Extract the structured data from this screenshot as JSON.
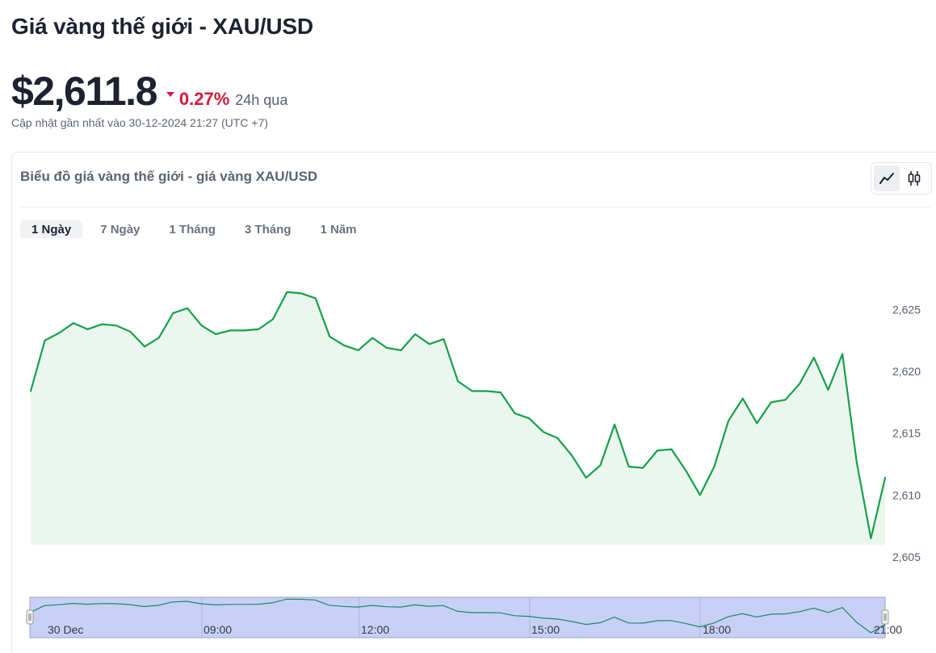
{
  "page": {
    "title": "Giá vàng thế giới - XAU/USD",
    "price": "$2,611.8",
    "change": "0.27%",
    "change_direction": "down",
    "period": "24h qua",
    "updated": "Cập nhật gần nhất vào 30-12-2024 21:27 (UTC +7)"
  },
  "card": {
    "header": "Biểu đồ giá vàng thế giới - giá vàng XAU/USD",
    "toggle": {
      "active": "line",
      "icons": [
        "line-chart-icon",
        "candlestick-icon"
      ]
    },
    "tabs": [
      {
        "label": "1 Ngày",
        "active": true
      },
      {
        "label": "7 Ngày",
        "active": false
      },
      {
        "label": "1 Tháng",
        "active": false
      },
      {
        "label": "3 Tháng",
        "active": false
      },
      {
        "label": "1 Năm",
        "active": false
      }
    ]
  },
  "colors": {
    "line": "#16a04a",
    "area": "#ebf6ee",
    "down": "#d6183a",
    "navigator_fill": "#c8d0f5",
    "navigator_line": "#1c8a6a"
  },
  "chart_data": {
    "type": "area",
    "ylim": [
      2605,
      2627.5
    ],
    "y_ticks": [
      2605,
      2610,
      2615,
      2620,
      2625
    ],
    "y_tick_labels": [
      "2,605",
      "2,610",
      "2,615",
      "2,620",
      "2,625"
    ],
    "navigator_x_labels": [
      "30 Dec",
      "09:00",
      "12:00",
      "15:00",
      "18:00",
      "21:00"
    ],
    "series": [
      {
        "values": [
          2618.4,
          2622.5,
          2623.1,
          2623.9,
          2623.4,
          2623.8,
          2623.7,
          2623.2,
          2622.0,
          2622.7,
          2624.7,
          2625.1,
          2623.7,
          2623.0,
          2623.3,
          2623.3,
          2623.4,
          2624.2,
          2626.4,
          2626.3,
          2625.9,
          2622.8,
          2622.1,
          2621.7,
          2622.7,
          2621.9,
          2621.7,
          2623.0,
          2622.2,
          2622.6,
          2619.2,
          2618.4,
          2618.4,
          2618.3,
          2616.6,
          2616.2,
          2615.1,
          2614.6,
          2613.2,
          2611.4,
          2612.4,
          2615.7,
          2612.3,
          2612.2,
          2613.6,
          2613.7,
          2612.0,
          2610.0,
          2612.3,
          2616.0,
          2617.8,
          2615.8,
          2617.5,
          2617.7,
          2619.0,
          2621.1,
          2618.5,
          2621.4,
          2612.7,
          2606.5,
          2611.4
        ]
      }
    ]
  }
}
